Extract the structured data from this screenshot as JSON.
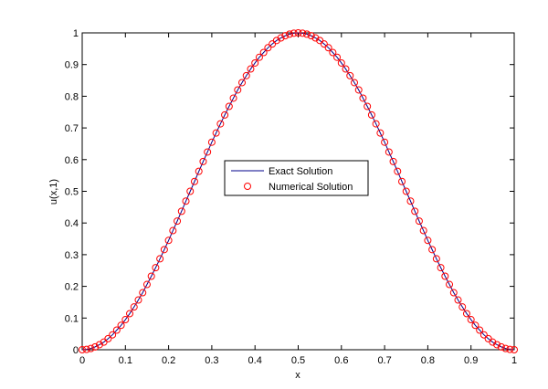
{
  "chart_data": {
    "type": "line",
    "title": "",
    "xlabel": "x",
    "ylabel": "u(x,1)",
    "xlim": [
      0,
      1
    ],
    "ylim": [
      0,
      1
    ],
    "grid": false,
    "legend_position": "center",
    "x_ticks": [
      "0",
      "0.1",
      "0.2",
      "0.3",
      "0.4",
      "0.5",
      "0.6",
      "0.7",
      "0.8",
      "0.9",
      "1"
    ],
    "y_ticks": [
      "0",
      "0.1",
      "0.2",
      "0.3",
      "0.4",
      "0.5",
      "0.6",
      "0.7",
      "0.8",
      "0.9",
      "1"
    ],
    "x": [
      0.0,
      0.01,
      0.02,
      0.03,
      0.04,
      0.05,
      0.06,
      0.07,
      0.08,
      0.09,
      0.1,
      0.11,
      0.12,
      0.13,
      0.14,
      0.15,
      0.16,
      0.17,
      0.18,
      0.19,
      0.2,
      0.21,
      0.22,
      0.23,
      0.24,
      0.25,
      0.26,
      0.27,
      0.28,
      0.29,
      0.3,
      0.31,
      0.32,
      0.33,
      0.34,
      0.35,
      0.36,
      0.37,
      0.38,
      0.39,
      0.4,
      0.41,
      0.42,
      0.43,
      0.44,
      0.45,
      0.46,
      0.47,
      0.48,
      0.49,
      0.5,
      0.51,
      0.52,
      0.53,
      0.54,
      0.55,
      0.56,
      0.57,
      0.58,
      0.59,
      0.6,
      0.61,
      0.62,
      0.63,
      0.64,
      0.65,
      0.66,
      0.67,
      0.68,
      0.69,
      0.7,
      0.71,
      0.72,
      0.73,
      0.74,
      0.75,
      0.76,
      0.77,
      0.78,
      0.79,
      0.8,
      0.81,
      0.82,
      0.83,
      0.84,
      0.85,
      0.86,
      0.87,
      0.88,
      0.89,
      0.9,
      0.91,
      0.92,
      0.93,
      0.94,
      0.95,
      0.96,
      0.97,
      0.98,
      0.99,
      1.0
    ],
    "series": [
      {
        "name": "Exact Solution",
        "color": "#00008b",
        "style": "line",
        "values": [
          0.0,
          0.001,
          0.004,
          0.009,
          0.016,
          0.024,
          0.035,
          0.047,
          0.062,
          0.077,
          0.095,
          0.114,
          0.135,
          0.157,
          0.18,
          0.206,
          0.232,
          0.259,
          0.287,
          0.316,
          0.345,
          0.376,
          0.406,
          0.437,
          0.469,
          0.5,
          0.531,
          0.563,
          0.594,
          0.624,
          0.655,
          0.684,
          0.713,
          0.741,
          0.768,
          0.794,
          0.82,
          0.843,
          0.865,
          0.886,
          0.905,
          0.923,
          0.938,
          0.953,
          0.965,
          0.976,
          0.984,
          0.991,
          0.996,
          0.999,
          1.0,
          0.999,
          0.996,
          0.991,
          0.984,
          0.976,
          0.965,
          0.953,
          0.938,
          0.923,
          0.905,
          0.886,
          0.865,
          0.843,
          0.82,
          0.794,
          0.768,
          0.741,
          0.713,
          0.684,
          0.655,
          0.624,
          0.594,
          0.563,
          0.531,
          0.5,
          0.469,
          0.437,
          0.406,
          0.376,
          0.345,
          0.316,
          0.287,
          0.259,
          0.232,
          0.206,
          0.18,
          0.157,
          0.135,
          0.114,
          0.095,
          0.077,
          0.062,
          0.047,
          0.035,
          0.024,
          0.016,
          0.009,
          0.004,
          0.001,
          0.0
        ]
      },
      {
        "name": "Numerical Solution",
        "color": "#ff0000",
        "style": "marker-circle",
        "values": [
          0.0,
          0.001,
          0.004,
          0.009,
          0.016,
          0.024,
          0.035,
          0.047,
          0.062,
          0.077,
          0.095,
          0.114,
          0.135,
          0.157,
          0.18,
          0.206,
          0.232,
          0.259,
          0.287,
          0.316,
          0.345,
          0.376,
          0.406,
          0.437,
          0.469,
          0.5,
          0.531,
          0.563,
          0.594,
          0.624,
          0.655,
          0.684,
          0.713,
          0.741,
          0.768,
          0.794,
          0.82,
          0.843,
          0.865,
          0.886,
          0.905,
          0.923,
          0.938,
          0.953,
          0.965,
          0.976,
          0.984,
          0.991,
          0.996,
          0.999,
          1.0,
          0.999,
          0.996,
          0.991,
          0.984,
          0.976,
          0.965,
          0.953,
          0.938,
          0.923,
          0.905,
          0.886,
          0.865,
          0.843,
          0.82,
          0.794,
          0.768,
          0.741,
          0.713,
          0.684,
          0.655,
          0.624,
          0.594,
          0.563,
          0.531,
          0.5,
          0.469,
          0.437,
          0.406,
          0.376,
          0.345,
          0.316,
          0.287,
          0.259,
          0.232,
          0.206,
          0.18,
          0.157,
          0.135,
          0.114,
          0.095,
          0.077,
          0.062,
          0.047,
          0.035,
          0.024,
          0.016,
          0.009,
          0.004,
          0.001,
          0.0
        ]
      }
    ]
  }
}
